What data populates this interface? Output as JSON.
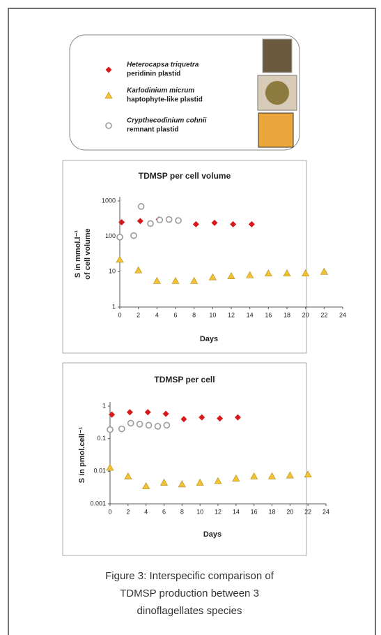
{
  "legend": [
    {
      "name": "Heterocapsa triquetra",
      "description": "peridinin plastid",
      "marker": "diamond",
      "color": "#d7191c"
    },
    {
      "name": "Karlodinium micrum",
      "description": "haptophyte-like plastid",
      "marker": "triangle",
      "color": "#f2c232"
    },
    {
      "name": "Crypthecodinium cohnii",
      "description": "remnant plastid",
      "marker": "circle",
      "color": "#9a9a9a"
    }
  ],
  "chart_data": [
    {
      "type": "scatter",
      "title": "TDMSP per cell volume",
      "xlabel": "Days",
      "ylabel": [
        "S in mmol.l⁻¹",
        "of cell volume"
      ],
      "log_y": true,
      "xlim": [
        0,
        24
      ],
      "xticks": [
        0,
        2,
        4,
        6,
        8,
        10,
        12,
        14,
        16,
        18,
        20,
        22,
        24
      ],
      "ylim": [
        1,
        1000
      ],
      "yticks": [
        1,
        10,
        100,
        1000
      ],
      "series": [
        {
          "name": "Heterocapsa triquetra",
          "x": [
            0.2,
            2.2,
            4.2,
            8.2,
            10.2,
            12.2,
            14.2
          ],
          "values": [
            250,
            270,
            300,
            220,
            240,
            220,
            220
          ]
        },
        {
          "name": "Karlodinium micrum",
          "x": [
            0,
            2,
            4,
            6,
            8,
            10,
            12,
            14,
            16,
            18,
            20,
            22
          ],
          "values": [
            22,
            11,
            5.5,
            5.5,
            5.5,
            7,
            7.5,
            8,
            9,
            9,
            9,
            10
          ]
        },
        {
          "name": "Crypthecodinium cohnii",
          "x": [
            0,
            1.5,
            2.3,
            3.3,
            4.3,
            5.3,
            6.3
          ],
          "values": [
            95,
            105,
            700,
            230,
            290,
            300,
            280
          ]
        }
      ]
    },
    {
      "type": "scatter",
      "title": "TDMSP per cell",
      "xlabel": "Days",
      "ylabel": [
        "S in pmol.cell⁻¹"
      ],
      "log_y": true,
      "xlim": [
        0,
        24
      ],
      "xticks": [
        0,
        2,
        4,
        6,
        8,
        10,
        12,
        14,
        16,
        18,
        20,
        22,
        24
      ],
      "ylim": [
        0.001,
        1
      ],
      "yticks": [
        0.001,
        0.01,
        0.1,
        1
      ],
      "series": [
        {
          "name": "Heterocapsa triquetra",
          "x": [
            0.2,
            2.2,
            4.2,
            6.2,
            8.2,
            10.2,
            12.2,
            14.2
          ],
          "values": [
            0.55,
            0.65,
            0.65,
            0.58,
            0.4,
            0.45,
            0.42,
            0.45
          ]
        },
        {
          "name": "Karlodinium micrum",
          "x": [
            0,
            2,
            4,
            6,
            8,
            10,
            12,
            14,
            16,
            18,
            20,
            22
          ],
          "values": [
            0.013,
            0.007,
            0.0035,
            0.0045,
            0.004,
            0.0045,
            0.005,
            0.006,
            0.007,
            0.007,
            0.0075,
            0.008
          ]
        },
        {
          "name": "Crypthecodinium cohnii",
          "x": [
            0,
            1.3,
            2.3,
            3.3,
            4.3,
            5.3,
            6.3
          ],
          "values": [
            0.19,
            0.2,
            0.3,
            0.28,
            0.26,
            0.24,
            0.26
          ]
        }
      ]
    }
  ],
  "caption": [
    "Figure 3: Interspecific comparison of",
    "TDMSP production between 3",
    "dinoflagellates species"
  ]
}
